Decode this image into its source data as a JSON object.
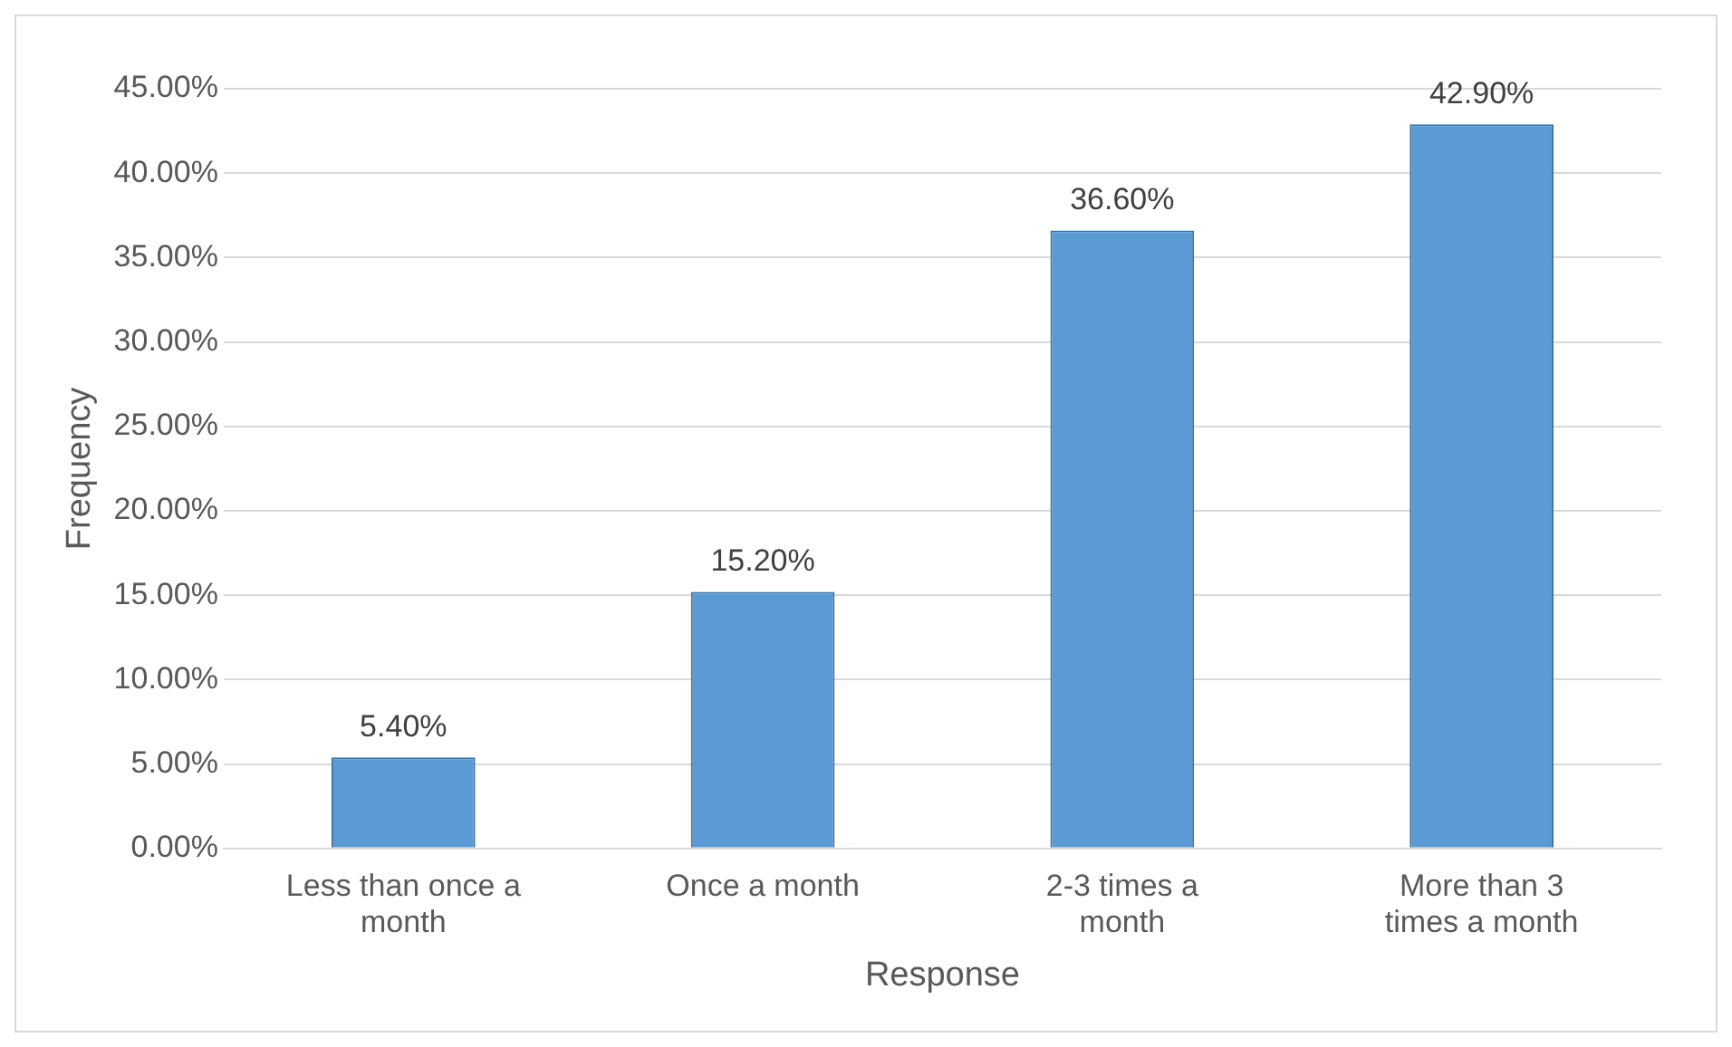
{
  "chart_data": {
    "type": "bar",
    "xlabel": "Response",
    "ylabel": "Frequency",
    "categories": [
      "Less than once a month",
      "Once a month",
      "2-3 times a month",
      "More than 3 times a month"
    ],
    "values": [
      5.4,
      15.2,
      36.6,
      42.9
    ],
    "value_labels": [
      "5.40%",
      "15.20%",
      "36.60%",
      "42.90%"
    ],
    "color": "#5b9bd5",
    "ylim": [
      0,
      45
    ],
    "yticks": [
      {
        "value": 0,
        "label": "0.00%"
      },
      {
        "value": 5,
        "label": "5.00%"
      },
      {
        "value": 10,
        "label": "10.00%"
      },
      {
        "value": 15,
        "label": "15.00%"
      },
      {
        "value": 20,
        "label": "20.00%"
      },
      {
        "value": 25,
        "label": "25.00%"
      },
      {
        "value": 30,
        "label": "30.00%"
      },
      {
        "value": 35,
        "label": "35.00%"
      },
      {
        "value": 40,
        "label": "40.00%"
      },
      {
        "value": 45,
        "label": "45.00%"
      }
    ],
    "grid": "y",
    "legend": false
  }
}
